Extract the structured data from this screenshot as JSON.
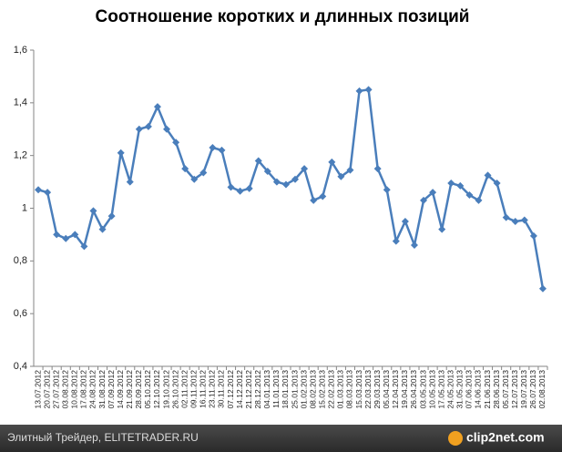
{
  "chart_data": {
    "type": "line",
    "title": "Соотношение коротких и длинных позиций",
    "categories": [
      "13.07.2012",
      "20.07.2012",
      "27.07.2012",
      "03.08.2012",
      "10.08.2012",
      "17.08.2012",
      "24.08.2012",
      "31.08.2012",
      "07.09.2012",
      "14.09.2012",
      "21.09.2012",
      "28.09.2012",
      "05.10.2012",
      "12.10.2012",
      "19.10.2012",
      "26.10.2012",
      "02.11.2012",
      "09.11.2012",
      "16.11.2012",
      "23.11.2012",
      "30.11.2012",
      "07.12.2012",
      "14.12.2012",
      "21.12.2012",
      "28.12.2012",
      "04.01.2013",
      "11.01.2013",
      "18.01.2013",
      "25.01.2013",
      "01.02.2013",
      "08.02.2013",
      "15.02.2013",
      "22.02.2013",
      "01.03.2013",
      "08.03.2013",
      "15.03.2013",
      "22.03.2013",
      "29.03.2013",
      "05.04.2013",
      "12.04.2013",
      "19.04.2013",
      "26.04.2013",
      "03.05.2013",
      "10.05.2013",
      "17.05.2013",
      "24.05.2013",
      "31.05.2013",
      "07.06.2013",
      "14.06.2013",
      "21.06.2013",
      "28.06.2013",
      "05.07.2013",
      "12.07.2013",
      "19.07.2013",
      "26.07.2013",
      "02.08.2013"
    ],
    "values": [
      1.07,
      1.06,
      0.9,
      0.885,
      0.9,
      0.855,
      0.99,
      0.92,
      0.97,
      1.21,
      1.1,
      1.3,
      1.31,
      1.385,
      1.3,
      1.25,
      1.15,
      1.11,
      1.135,
      1.23,
      1.22,
      1.08,
      1.065,
      1.075,
      1.18,
      1.14,
      1.1,
      1.09,
      1.11,
      1.15,
      1.03,
      1.045,
      1.175,
      1.12,
      1.145,
      1.445,
      1.45,
      1.15,
      1.07,
      0.875,
      0.95,
      0.86,
      1.03,
      1.06,
      0.92,
      1.095,
      1.085,
      1.05,
      1.03,
      1.125,
      1.095,
      0.965,
      0.95,
      0.955,
      0.895,
      0.695
    ],
    "color": "#4a7ebb",
    "ylim": [
      0.4,
      1.6
    ],
    "yticks": [
      {
        "value": 0.4,
        "label": "0,4"
      },
      {
        "value": 0.6,
        "label": "0,6"
      },
      {
        "value": 0.8,
        "label": "0,8"
      },
      1,
      {
        "value": 1.2,
        "label": "1,2"
      },
      {
        "value": 1.4,
        "label": "1,4"
      },
      {
        "value": 1.6,
        "label": "1,6"
      }
    ],
    "grid": false
  },
  "footer": {
    "left": "Элитный Трейдер, ELITETRADER.RU",
    "right": "clip2net.com"
  }
}
